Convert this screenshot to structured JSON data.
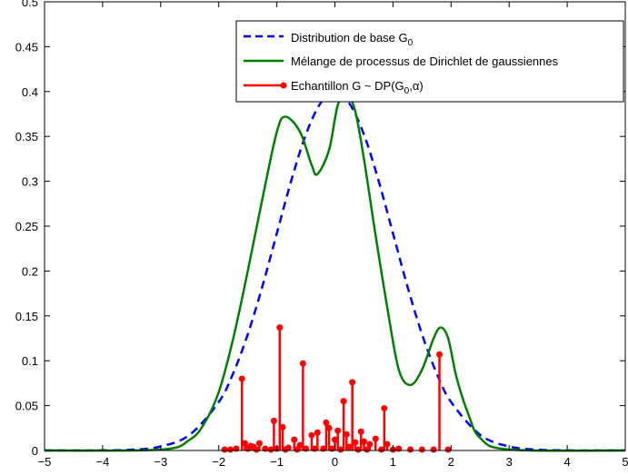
{
  "chart_data": {
    "type": "line",
    "xlim": [
      -5,
      5
    ],
    "ylim": [
      0,
      0.5
    ],
    "grid": false,
    "legend_position": "top-right",
    "x_ticks": [
      -5,
      -4,
      -3,
      -2,
      -1,
      0,
      1,
      2,
      3,
      4,
      5
    ],
    "x_tick_labels": [
      "−5",
      "−4",
      "−3",
      "−2",
      "−1",
      "0",
      "1",
      "2",
      "3",
      "4",
      "5"
    ],
    "y_ticks": [
      0,
      0.05,
      0.1,
      0.15,
      0.2,
      0.25,
      0.3,
      0.35,
      0.4,
      0.45,
      0.5
    ],
    "y_tick_labels": [
      "0",
      "0.05",
      "0.1",
      "0.15",
      "0.2",
      "0.25",
      "0.3",
      "0.35",
      "0.4",
      "0.45",
      "0.5"
    ],
    "series": [
      {
        "name": "Distribution de base G0",
        "label_main": "Distribution de base G",
        "label_sub": "0",
        "style": "dashed",
        "color": "#0000ff",
        "x": [
          -5,
          -4.5,
          -4,
          -3.5,
          -3,
          -2.5,
          -2,
          -1.75,
          -1.5,
          -1.25,
          -1,
          -0.75,
          -0.5,
          -0.25,
          0,
          0.25,
          0.5,
          0.75,
          1,
          1.25,
          1.5,
          1.75,
          2,
          2.5,
          3,
          3.5,
          4,
          4.5,
          5
        ],
        "y": [
          1.5e-06,
          1.6e-05,
          0.000134,
          0.00087,
          0.00443,
          0.0175,
          0.054,
          0.0863,
          0.1295,
          0.1826,
          0.242,
          0.3011,
          0.3521,
          0.3867,
          0.3989,
          0.3867,
          0.3521,
          0.3011,
          0.242,
          0.1826,
          0.1295,
          0.0863,
          0.054,
          0.0175,
          0.00443,
          0.00087,
          0.000134,
          1.6e-05,
          1.5e-06
        ]
      },
      {
        "name": "Mélange de processus de Dirichlet de gaussiennes",
        "style": "solid",
        "color": "#008000",
        "x": [
          -5,
          -3,
          -2.5,
          -2.25,
          -2,
          -1.75,
          -1.5,
          -1.25,
          -1,
          -0.85,
          -0.6,
          -0.4,
          -0.3,
          -0.1,
          0.05,
          0.2,
          0.35,
          0.5,
          0.7,
          0.9,
          1.1,
          1.3,
          1.5,
          1.7,
          1.82,
          1.95,
          2.1,
          2.3,
          2.5,
          3,
          5
        ],
        "y": [
          0,
          0.001,
          0.012,
          0.03,
          0.065,
          0.125,
          0.2,
          0.28,
          0.355,
          0.372,
          0.355,
          0.318,
          0.308,
          0.335,
          0.385,
          0.398,
          0.378,
          0.325,
          0.24,
          0.16,
          0.09,
          0.073,
          0.09,
          0.125,
          0.137,
          0.125,
          0.08,
          0.04,
          0.014,
          0.001,
          0
        ]
      },
      {
        "name": "Echantillon G ~ DP(G0,α)",
        "label_main": "Echantillon G ~ DP(G",
        "label_sub": "0",
        "label_tail": ",α)",
        "style": "stem",
        "color": "#ff0000",
        "x": [
          -1.9,
          -1.8,
          -1.7,
          -1.6,
          -1.55,
          -1.5,
          -1.45,
          -1.4,
          -1.35,
          -1.3,
          -1.2,
          -1.1,
          -1.05,
          -1.0,
          -0.95,
          -0.9,
          -0.85,
          -0.8,
          -0.7,
          -0.65,
          -0.6,
          -0.55,
          -0.5,
          -0.4,
          -0.35,
          -0.3,
          -0.2,
          -0.15,
          -0.1,
          -0.05,
          0.0,
          0.05,
          0.1,
          0.15,
          0.2,
          0.25,
          0.3,
          0.35,
          0.4,
          0.45,
          0.5,
          0.55,
          0.6,
          0.7,
          0.8,
          0.85,
          0.9,
          1.0,
          1.1,
          1.3,
          1.5,
          1.7,
          1.8,
          1.95
        ],
        "y": [
          0.001,
          0.001,
          0.002,
          0.08,
          0.008,
          0.002,
          0.005,
          0.004,
          0.001,
          0.008,
          0.002,
          0.001,
          0.033,
          0.002,
          0.137,
          0.026,
          0.001,
          0.003,
          0.012,
          0.001,
          0.006,
          0.097,
          0.002,
          0.017,
          0.002,
          0.02,
          0.002,
          0.031,
          0.025,
          0.002,
          0.012,
          0.022,
          0.001,
          0.055,
          0.018,
          0.004,
          0.076,
          0.009,
          0.001,
          0.021,
          0.01,
          0.001,
          0.007,
          0.013,
          0.001,
          0.047,
          0.007,
          0.001,
          0.002,
          0.001,
          0.001,
          0.001,
          0.107,
          0.001
        ]
      }
    ]
  }
}
